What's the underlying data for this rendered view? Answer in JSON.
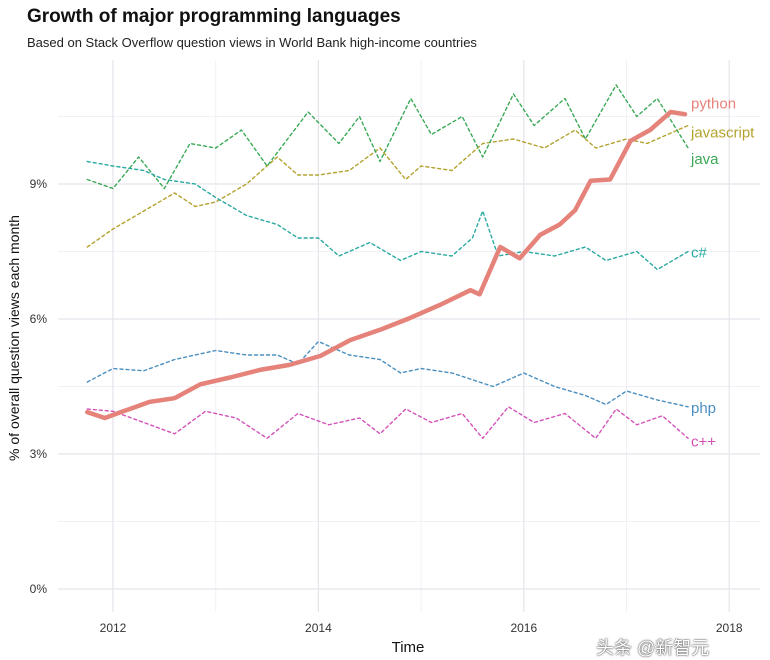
{
  "chart_data": {
    "type": "line",
    "title": "Growth of major programming languages",
    "subtitle": "Based on Stack Overflow question views in World Bank high-income countries",
    "xlabel": "Time",
    "ylabel": "% of overall question views each month",
    "xlim": [
      2011.5,
      2018.3
    ],
    "ylim": [
      0,
      11.5
    ],
    "xticks": [
      {
        "v": 2012,
        "label": "2012"
      },
      {
        "v": 2014,
        "label": "2014"
      },
      {
        "v": 2016,
        "label": "2016"
      },
      {
        "v": 2018,
        "label": "2018"
      }
    ],
    "yticks": [
      {
        "v": 0,
        "label": "0%"
      },
      {
        "v": 3,
        "label": "3%"
      },
      {
        "v": 6,
        "label": "6%"
      },
      {
        "v": 9,
        "label": "9%"
      }
    ],
    "grid": true,
    "legend": "direct labels at line ends",
    "series": [
      {
        "name": "python",
        "color": "#E5827A",
        "style": "solid",
        "x": [
          2011.75,
          2011.92,
          2012.1,
          2012.36,
          2012.6,
          2012.85,
          2013.14,
          2013.43,
          2013.72,
          2014.02,
          2014.31,
          2014.6,
          2014.89,
          2015.18,
          2015.48,
          2015.57,
          2015.77,
          2015.96,
          2016.16,
          2016.35,
          2016.5,
          2016.65,
          2016.84,
          2017.04,
          2017.23,
          2017.43,
          2017.57
        ],
        "y": [
          3.93,
          3.8,
          3.95,
          4.16,
          4.24,
          4.55,
          4.7,
          4.87,
          4.98,
          5.18,
          5.53,
          5.76,
          6.02,
          6.31,
          6.64,
          6.55,
          7.6,
          7.35,
          7.87,
          8.1,
          8.42,
          9.07,
          9.1,
          9.96,
          10.2,
          10.6,
          10.55
        ]
      },
      {
        "name": "javascript",
        "color": "#B3A22E",
        "style": "dashed",
        "x": [
          2011.75,
          2012,
          2012.3,
          2012.6,
          2012.8,
          2013,
          2013.3,
          2013.6,
          2013.8,
          2014,
          2014.3,
          2014.6,
          2014.85,
          2015,
          2015.3,
          2015.6,
          2015.9,
          2016.2,
          2016.5,
          2016.7,
          2017,
          2017.2,
          2017.6
        ],
        "y": [
          7.6,
          8.0,
          8.4,
          8.8,
          8.5,
          8.6,
          9.0,
          9.6,
          9.2,
          9.2,
          9.3,
          9.8,
          9.1,
          9.4,
          9.3,
          9.9,
          10.0,
          9.8,
          10.2,
          9.8,
          10.0,
          9.9,
          10.3
        ]
      },
      {
        "name": "java",
        "color": "#3AA856",
        "style": "dashed",
        "x": [
          2011.75,
          2012,
          2012.25,
          2012.5,
          2012.75,
          2013,
          2013.25,
          2013.5,
          2013.9,
          2014.2,
          2014.4,
          2014.6,
          2014.9,
          2015.1,
          2015.4,
          2015.6,
          2015.9,
          2016.1,
          2016.4,
          2016.6,
          2016.9,
          2017.1,
          2017.3,
          2017.6
        ],
        "y": [
          9.1,
          8.9,
          9.6,
          8.9,
          9.9,
          9.8,
          10.2,
          9.4,
          10.6,
          9.9,
          10.5,
          9.5,
          10.9,
          10.1,
          10.5,
          9.6,
          11.0,
          10.3,
          10.9,
          10.0,
          11.2,
          10.5,
          10.9,
          9.8
        ]
      },
      {
        "name": "c#",
        "color": "#2AAAA0",
        "style": "dashed",
        "x": [
          2011.75,
          2012,
          2012.3,
          2012.5,
          2012.8,
          2013,
          2013.3,
          2013.6,
          2013.8,
          2014,
          2014.2,
          2014.5,
          2014.8,
          2015,
          2015.3,
          2015.5,
          2015.6,
          2015.75,
          2016,
          2016.3,
          2016.6,
          2016.8,
          2017.1,
          2017.3,
          2017.6
        ],
        "y": [
          9.5,
          9.4,
          9.3,
          9.1,
          9.0,
          8.7,
          8.3,
          8.1,
          7.8,
          7.8,
          7.4,
          7.7,
          7.3,
          7.5,
          7.4,
          7.8,
          8.4,
          7.4,
          7.5,
          7.4,
          7.6,
          7.3,
          7.5,
          7.1,
          7.5
        ]
      },
      {
        "name": "php",
        "color": "#4A8FC0",
        "style": "dashed",
        "x": [
          2011.75,
          2012,
          2012.3,
          2012.6,
          2013,
          2013.3,
          2013.6,
          2013.8,
          2014,
          2014.3,
          2014.6,
          2014.8,
          2015,
          2015.3,
          2015.7,
          2016,
          2016.3,
          2016.6,
          2016.8,
          2017,
          2017.3,
          2017.6
        ],
        "y": [
          4.6,
          4.9,
          4.85,
          5.1,
          5.3,
          5.2,
          5.2,
          5.0,
          5.5,
          5.2,
          5.1,
          4.8,
          4.9,
          4.8,
          4.5,
          4.8,
          4.5,
          4.3,
          4.1,
          4.4,
          4.2,
          4.05
        ]
      },
      {
        "name": "c++",
        "color": "#D452B8",
        "style": "dashed",
        "x": [
          2011.75,
          2012,
          2012.3,
          2012.6,
          2012.9,
          2013.2,
          2013.5,
          2013.8,
          2014.1,
          2014.4,
          2014.6,
          2014.85,
          2015.1,
          2015.4,
          2015.6,
          2015.85,
          2016.1,
          2016.4,
          2016.7,
          2016.9,
          2017.1,
          2017.35,
          2017.6
        ],
        "y": [
          4.0,
          3.95,
          3.7,
          3.45,
          3.95,
          3.8,
          3.35,
          3.9,
          3.65,
          3.8,
          3.45,
          4.0,
          3.7,
          3.9,
          3.35,
          4.05,
          3.7,
          3.9,
          3.35,
          4.0,
          3.65,
          3.85,
          3.35
        ]
      }
    ]
  },
  "watermark": "头条 @新智元"
}
